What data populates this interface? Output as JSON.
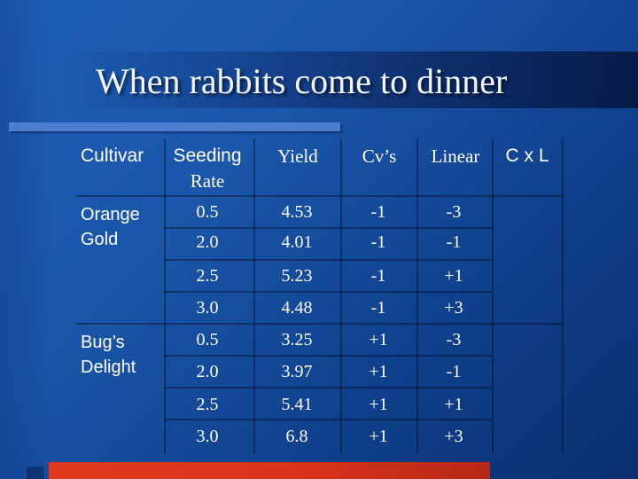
{
  "slide": {
    "title": "When rabbits come to dinner"
  },
  "table": {
    "headers": {
      "cultivar": "Cultivar",
      "seeding_line1": "Seeding",
      "seeding_line2": "Rate",
      "yield": "Yield",
      "cvs": "Cv’s",
      "linear": "Linear",
      "cxl": "C x L"
    },
    "groups": [
      {
        "cultivar_line1": "Orange",
        "cultivar_line2": "Gold",
        "rows": [
          {
            "rate": "0.5",
            "yield": "4.53",
            "cv": "-1",
            "linear": "-3"
          },
          {
            "rate": "2.0",
            "yield": "4.01",
            "cv": "-1",
            "linear": "-1"
          },
          {
            "rate": "2.5",
            "yield": "5.23",
            "cv": "-1",
            "linear": "+1"
          },
          {
            "rate": "3.0",
            "yield": "4.48",
            "cv": "-1",
            "linear": "+3"
          }
        ]
      },
      {
        "cultivar_line1": "Bug’s",
        "cultivar_line2": "Delight",
        "rows": [
          {
            "rate": "0.5",
            "yield": "3.25",
            "cv": "+1",
            "linear": "-3"
          },
          {
            "rate": "2.0",
            "yield": "3.97",
            "cv": "+1",
            "linear": "-1"
          },
          {
            "rate": "2.5",
            "yield": "5.41",
            "cv": "+1",
            "linear": "+1"
          },
          {
            "rate": "3.0",
            "yield": "6.8",
            "cv": "+1",
            "linear": "+3"
          }
        ]
      }
    ]
  }
}
